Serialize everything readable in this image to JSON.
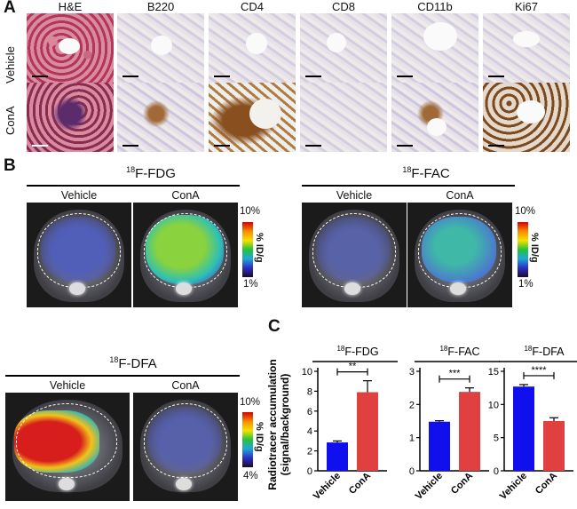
{
  "panels": {
    "a": "A",
    "b": "B",
    "c": "C"
  },
  "panel_a": {
    "columns": [
      "H&E",
      "B220",
      "CD4",
      "CD8",
      "CD11b",
      "Ki67"
    ],
    "rows": [
      "Vehicle",
      "ConA"
    ]
  },
  "panel_b": {
    "groups": [
      {
        "tracer_sup": "18",
        "tracer": "F-FDG",
        "left": "Vehicle",
        "right": "ConA",
        "scale_top": "10%",
        "scale_unit": "% ID/g",
        "scale_bottom": "1%"
      },
      {
        "tracer_sup": "18",
        "tracer": "F-FAC",
        "left": "Vehicle",
        "right": "ConA",
        "scale_top": "10%",
        "scale_unit": "% ID/g",
        "scale_bottom": "1%"
      },
      {
        "tracer_sup": "18",
        "tracer": "F-DFA",
        "left": "Vehicle",
        "right": "ConA",
        "scale_top": "10%",
        "scale_unit": "% ID/g",
        "scale_bottom": "4%"
      }
    ]
  },
  "colors": {
    "vehicle": "#1010ee",
    "cona": "#e04040"
  },
  "chart_data": [
    {
      "type": "bar",
      "title_sup": "18",
      "title": "F-FDG",
      "categories": [
        "Vehicle",
        "ConA"
      ],
      "values": [
        2.85,
        7.9
      ],
      "errors": [
        0.15,
        1.15
      ],
      "ylabel": "Radiotracer accumulation (signal/background)",
      "ylim": [
        0,
        10
      ],
      "yticks": [
        0,
        2,
        4,
        6,
        8,
        10
      ],
      "significance": "**"
    },
    {
      "type": "bar",
      "title_sup": "18",
      "title": "F-FAC",
      "categories": [
        "Vehicle",
        "ConA"
      ],
      "values": [
        1.48,
        2.38
      ],
      "errors": [
        0.03,
        0.12
      ],
      "ylim": [
        0,
        3
      ],
      "yticks": [
        0,
        1,
        2,
        3
      ],
      "significance": "***"
    },
    {
      "type": "bar",
      "title_sup": "18",
      "title": "F-DFA",
      "categories": [
        "Vehicle",
        "ConA"
      ],
      "values": [
        12.7,
        7.5
      ],
      "errors": [
        0.3,
        0.5
      ],
      "ylim": [
        0,
        15
      ],
      "yticks": [
        0,
        5,
        10,
        15
      ],
      "significance": "****"
    }
  ]
}
